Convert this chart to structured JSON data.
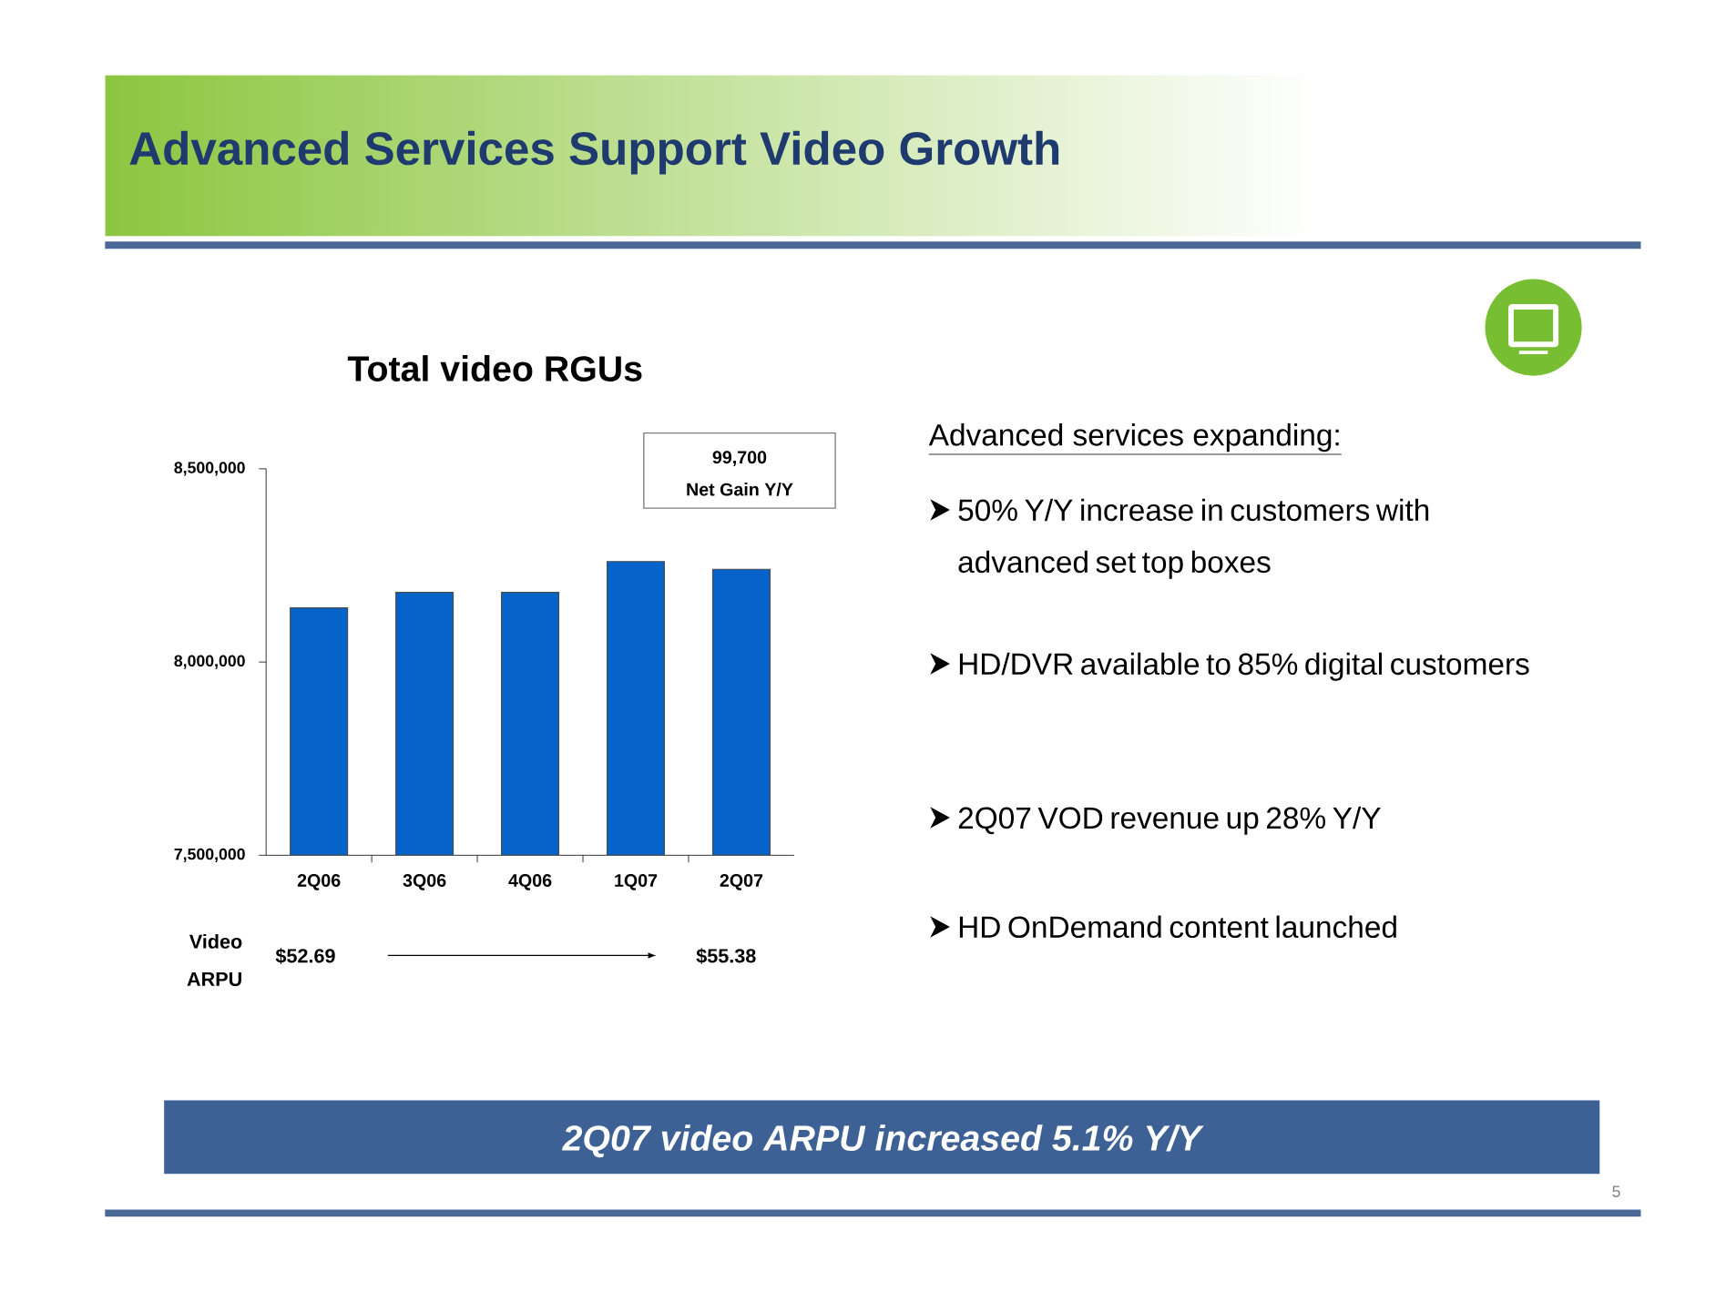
{
  "chart_data": {
    "type": "bar",
    "title": "Total video RGUs",
    "categories": [
      "2Q06",
      "3Q06",
      "4Q06",
      "1Q07",
      "2Q07"
    ],
    "values": [
      8140000,
      8180000,
      8180000,
      8260000,
      8240000
    ],
    "color": "#0563c9",
    "ylim": [
      7500000,
      8500000
    ],
    "yticks": [
      {
        "value": 7500000,
        "label": "7,500,000"
      },
      {
        "value": 8000000,
        "label": "8,000,000"
      },
      {
        "value": 8500000,
        "label": "8,500,000"
      }
    ],
    "annotations": [
      "Advanced Services Support Video Growth",
      "99,700",
      "Net Gain Y/Y",
      "Video",
      "ARPU",
      "$52.69",
      "$55.38",
      "Advanced services expanding:",
      "50% Y/Y increase in customers with advanced set top boxes",
      "HD/DVR available to 85% digital customers",
      "2Q07 VOD revenue up 28% Y/Y",
      "HD OnDemand content launched",
      "2Q07 video ARPU increased 5.1% Y/Y",
      "5"
    ]
  }
}
